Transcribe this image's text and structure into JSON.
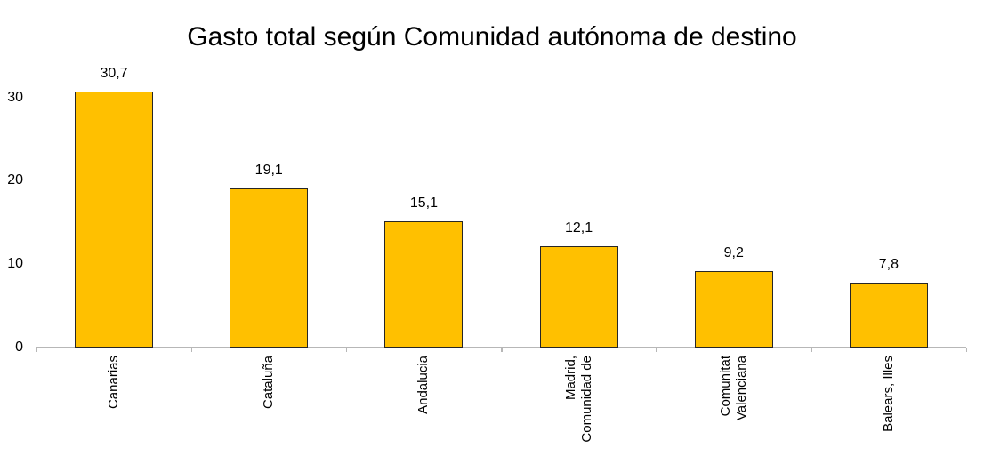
{
  "chart_data": {
    "type": "bar",
    "title": "Gasto total según Comunidad autónoma de destino",
    "categories": [
      "Canarias",
      "Cataluña",
      "Andalucia",
      "Madrid, Comunidad de",
      "Comunitat Valenciana",
      "Balears, Illes"
    ],
    "category_lines": [
      [
        "Canarias"
      ],
      [
        "Cataluña"
      ],
      [
        "Andalucia"
      ],
      [
        "Madrid,",
        "Comunidad de"
      ],
      [
        "Comunitat",
        "Valenciana"
      ],
      [
        "Balears, Illes"
      ]
    ],
    "values": [
      30.7,
      19.1,
      15.1,
      12.1,
      9.2,
      7.8
    ],
    "value_labels": [
      "30,7",
      "19,1",
      "15,1",
      "12,1",
      "9,2",
      "7,8"
    ],
    "y_ticks": [
      {
        "label": "30",
        "value": 30
      },
      {
        "label": "20",
        "value": 20
      },
      {
        "label": "10",
        "value": 10
      },
      {
        "label": "0",
        "value": 0
      }
    ],
    "xlabel": "",
    "ylabel": "",
    "ylim": [
      0,
      32
    ],
    "grid": false,
    "legend": false,
    "colors": {
      "bar_fill": "#FFC000",
      "bar_border": "#262626",
      "axis_line": "#B7B7B7",
      "text": "#000000"
    }
  }
}
